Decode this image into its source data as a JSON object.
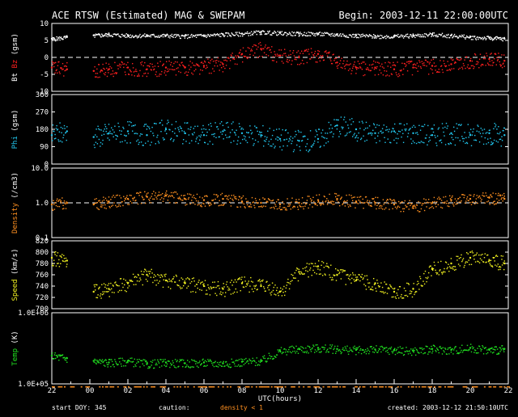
{
  "header": {
    "title": "ACE RTSW (Estimated) MAG & SWEPAM",
    "begin": "Begin: 2003-12-11 22:00:00UTC"
  },
  "footer": {
    "start_doy": "start DOY: 345",
    "caution": "caution:",
    "density_note": "density < 1",
    "created": "created: 2003-12-12 21:50:10UTC"
  },
  "colors": {
    "bt": "#ffffff",
    "bz": "#ff2020",
    "phi": "#22c8f0",
    "density": "#ff9020",
    "speed": "#f0f020",
    "temp": "#20e020",
    "dashed": "#ffffff"
  },
  "chart_data": [
    {
      "type": "scatter",
      "panel": "mag",
      "ylabel_parts": [
        {
          "text": "Bt",
          "color": "#ffffff"
        },
        {
          "text": " Bz",
          "color": "#ff2020"
        },
        {
          "text": " (gsm)",
          "color": "#ffffff"
        }
      ],
      "ylim": [
        -10,
        10
      ],
      "yticks": [
        10,
        5,
        0,
        -5,
        -10
      ],
      "ytick_labels": [
        "10",
        "5",
        "0",
        "-5",
        "-10"
      ],
      "reference_line": 0,
      "series": [
        {
          "key": "bt",
          "color": "#ffffff",
          "x": [
            22.0,
            22.8,
            0.2,
            1.0,
            2.0,
            3.0,
            4.0,
            5.0,
            6.0,
            7.0,
            8.0,
            9.0,
            10.0,
            11.0,
            12.0,
            13.0,
            14.0,
            15.0,
            16.0,
            17.0,
            18.0,
            19.0,
            20.0,
            21.0,
            21.8
          ],
          "y": [
            5.5,
            6.0,
            6.5,
            6.8,
            6.5,
            6.5,
            6.5,
            6.3,
            6.5,
            6.8,
            7.0,
            7.5,
            7.2,
            7.0,
            7.0,
            6.8,
            6.5,
            6.3,
            6.3,
            6.5,
            6.8,
            6.5,
            6.0,
            5.8,
            5.5
          ]
        },
        {
          "key": "bz",
          "color": "#ff2020",
          "x": [
            22.0,
            22.8,
            0.2,
            1.0,
            2.0,
            3.0,
            4.0,
            5.0,
            6.0,
            7.0,
            8.0,
            9.0,
            10.0,
            11.0,
            12.0,
            13.0,
            14.0,
            15.0,
            16.0,
            17.0,
            18.0,
            19.0,
            20.0,
            21.0,
            21.8
          ],
          "y": [
            -3.0,
            -3.5,
            -4.0,
            -3.5,
            -3.0,
            -3.5,
            -3.0,
            -3.0,
            -2.5,
            -2.0,
            1.0,
            2.5,
            0.5,
            0.0,
            1.0,
            -1.5,
            -3.0,
            -3.0,
            -3.5,
            -3.0,
            -2.5,
            -2.0,
            -1.0,
            -0.5,
            -1.0
          ]
        }
      ]
    },
    {
      "type": "scatter",
      "panel": "phi",
      "ylabel_parts": [
        {
          "text": "Phi",
          "color": "#22c8f0"
        },
        {
          "text": " (gsm)",
          "color": "#ffffff"
        }
      ],
      "ylim": [
        0,
        360
      ],
      "yticks": [
        360,
        270,
        180,
        90,
        0
      ],
      "ytick_labels": [
        "360",
        "270",
        "180",
        "90",
        "0"
      ],
      "series": [
        {
          "key": "phi",
          "color": "#22c8f0",
          "x": [
            22.0,
            22.8,
            0.2,
            1.0,
            2.0,
            3.0,
            4.0,
            5.0,
            6.0,
            7.0,
            8.0,
            9.0,
            10.0,
            11.0,
            12.0,
            13.0,
            14.0,
            15.0,
            16.0,
            17.0,
            18.0,
            19.0,
            20.0,
            21.0,
            21.8
          ],
          "y": [
            150,
            170,
            140,
            160,
            170,
            150,
            180,
            160,
            150,
            170,
            160,
            150,
            130,
            120,
            130,
            200,
            180,
            160,
            170,
            160,
            150,
            160,
            150,
            160,
            150
          ]
        }
      ]
    },
    {
      "type": "scatter",
      "panel": "density",
      "ylabel_parts": [
        {
          "text": "Density",
          "color": "#ff9020"
        },
        {
          "text": " (/cm3)",
          "color": "#ffffff"
        }
      ],
      "scale": "log",
      "ylim": [
        0.1,
        10.0
      ],
      "yticks": [
        10.0,
        1.0,
        0.1
      ],
      "ytick_labels": [
        "10.0",
        "1.0",
        "0.1"
      ],
      "reference_line": 1.0,
      "series": [
        {
          "key": "density",
          "color": "#ff9020",
          "x": [
            22.0,
            22.8,
            0.2,
            1.0,
            2.0,
            3.0,
            4.0,
            5.0,
            6.0,
            7.0,
            8.0,
            9.0,
            10.0,
            11.0,
            12.0,
            13.0,
            14.0,
            15.0,
            16.0,
            17.0,
            18.0,
            19.0,
            20.0,
            21.0,
            21.8
          ],
          "y": [
            0.9,
            1.0,
            0.9,
            1.1,
            1.3,
            1.5,
            1.6,
            1.3,
            1.2,
            1.3,
            1.1,
            1.0,
            0.9,
            1.0,
            1.2,
            1.3,
            1.1,
            1.0,
            0.9,
            0.8,
            1.0,
            1.2,
            1.3,
            1.4,
            1.3
          ]
        }
      ]
    },
    {
      "type": "scatter",
      "panel": "speed",
      "ylabel_parts": [
        {
          "text": "Speed",
          "color": "#f0f020"
        },
        {
          "text": " (km/s)",
          "color": "#ffffff"
        }
      ],
      "ylim": [
        700,
        820
      ],
      "yticks": [
        820,
        800,
        780,
        760,
        740,
        720,
        700
      ],
      "ytick_labels": [
        "820",
        "800",
        "780",
        "760",
        "740",
        "720",
        "700"
      ],
      "series": [
        {
          "key": "speed",
          "color": "#f0f020",
          "x": [
            22.0,
            22.8,
            0.2,
            1.0,
            2.0,
            3.0,
            4.0,
            5.0,
            6.0,
            7.0,
            8.0,
            9.0,
            10.0,
            11.0,
            12.0,
            13.0,
            14.0,
            15.0,
            16.0,
            17.0,
            18.0,
            19.0,
            20.0,
            21.0,
            21.8
          ],
          "y": [
            790,
            785,
            730,
            735,
            745,
            760,
            750,
            745,
            740,
            735,
            745,
            740,
            730,
            765,
            775,
            760,
            750,
            745,
            730,
            735,
            770,
            780,
            790,
            785,
            780
          ]
        }
      ]
    },
    {
      "type": "scatter",
      "panel": "temp",
      "ylabel_parts": [
        {
          "text": "Temp",
          "color": "#20e020"
        },
        {
          "text": " (K)",
          "color": "#ffffff"
        }
      ],
      "scale": "log",
      "ylim": [
        100000,
        1000000
      ],
      "yticks": [
        1000000,
        100000
      ],
      "ytick_labels": [
        "1.0E+06",
        "1.0E+05"
      ],
      "series": [
        {
          "key": "temp",
          "color": "#20e020",
          "x": [
            22.0,
            22.8,
            0.2,
            1.0,
            2.0,
            3.0,
            4.0,
            5.0,
            6.0,
            7.0,
            8.0,
            9.0,
            10.0,
            11.0,
            12.0,
            13.0,
            14.0,
            15.0,
            16.0,
            17.0,
            18.0,
            19.0,
            20.0,
            21.0,
            21.8
          ],
          "y": [
            250000,
            230000,
            210000,
            200000,
            210000,
            190000,
            200000,
            195000,
            200000,
            195000,
            205000,
            210000,
            290000,
            310000,
            320000,
            310000,
            300000,
            305000,
            300000,
            290000,
            310000,
            300000,
            320000,
            300000,
            310000
          ]
        }
      ]
    }
  ],
  "x_axis": {
    "label": "UTC(hours)",
    "tick_labels": [
      "22",
      "00",
      "02",
      "04",
      "06",
      "08",
      "10",
      "12",
      "14",
      "16",
      "18",
      "20",
      "22"
    ]
  }
}
